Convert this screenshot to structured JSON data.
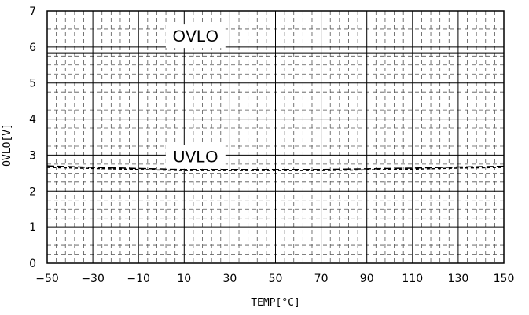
{
  "chart_data": {
    "type": "line",
    "xlabel": "TEMP[°C]",
    "ylabel": "OVLO[V]",
    "xlim": [
      -50,
      150
    ],
    "ylim": [
      0,
      7
    ],
    "x_ticks": [
      -50,
      -30,
      -10,
      10,
      30,
      50,
      70,
      90,
      110,
      130,
      150
    ],
    "y_ticks": [
      0,
      1,
      2,
      3,
      4,
      5,
      6,
      7
    ],
    "grid": true,
    "annotations": [
      {
        "text": "OVLO",
        "x": 15,
        "y": 6.3
      },
      {
        "text": "UVLO",
        "x": 15,
        "y": 2.95
      }
    ],
    "series": [
      {
        "x": [
          -50,
          150
        ],
        "y": [
          5.83,
          5.83
        ],
        "style": "solid"
      },
      {
        "x": [
          -50,
          -30,
          -10,
          10,
          30,
          50,
          70,
          90,
          110,
          130,
          150
        ],
        "y": [
          2.7,
          2.66,
          2.63,
          2.6,
          2.6,
          2.6,
          2.6,
          2.62,
          2.64,
          2.67,
          2.69
        ],
        "style": "dashed"
      },
      {
        "x": [
          -50,
          -30,
          -10,
          10,
          30,
          50,
          70,
          90,
          110,
          130,
          150
        ],
        "y": [
          2.66,
          2.63,
          2.6,
          2.57,
          2.57,
          2.57,
          2.57,
          2.59,
          2.61,
          2.64,
          2.66
        ],
        "style": "dashed"
      }
    ]
  }
}
